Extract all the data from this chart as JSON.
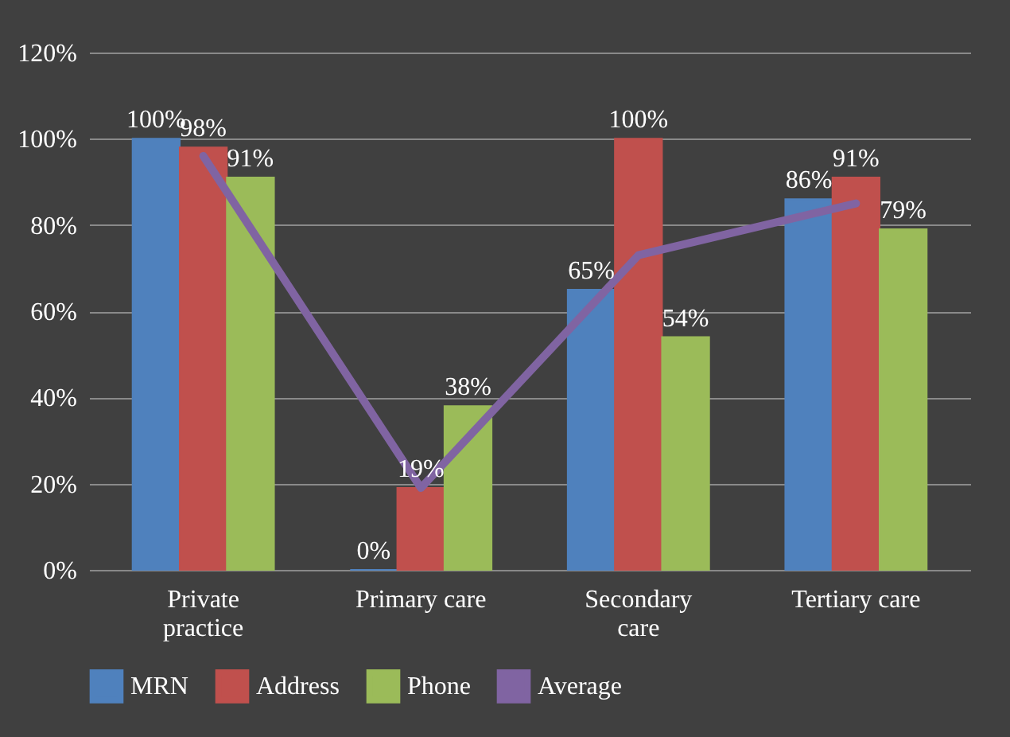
{
  "chart_data": {
    "type": "bar",
    "categories": [
      "Private practice",
      "Primary care",
      "Secondary care",
      "Tertiary care"
    ],
    "series": [
      {
        "name": "MRN",
        "color": "#4f81bd",
        "values": [
          100,
          0,
          65,
          86
        ],
        "value_labels": [
          "100%",
          "0%",
          "65%",
          "86%"
        ]
      },
      {
        "name": "Address",
        "color": "#c0504d",
        "values": [
          98,
          19,
          100,
          91
        ],
        "value_labels": [
          "98%",
          "19%",
          "100%",
          "91%"
        ]
      },
      {
        "name": "Phone",
        "color": "#9bbb59",
        "values": [
          91,
          38,
          54,
          79
        ],
        "value_labels": [
          "91%",
          "38%",
          "54%",
          "79%"
        ]
      },
      {
        "name": "Average",
        "color": "#8064a2",
        "type": "line",
        "values": [
          96,
          19,
          73,
          85
        ]
      }
    ],
    "ylim": [
      0,
      120
    ],
    "yticks": [
      {
        "value": 0,
        "label": "0%"
      },
      {
        "value": 20,
        "label": "20%"
      },
      {
        "value": 40,
        "label": "40%"
      },
      {
        "value": 60,
        "label": "60%"
      },
      {
        "value": 80,
        "label": "80%"
      },
      {
        "value": 100,
        "label": "100%"
      },
      {
        "value": 120,
        "label": "120%"
      }
    ],
    "grid": "y",
    "legend": "bottom",
    "marker": "none",
    "line_style": "solid"
  }
}
